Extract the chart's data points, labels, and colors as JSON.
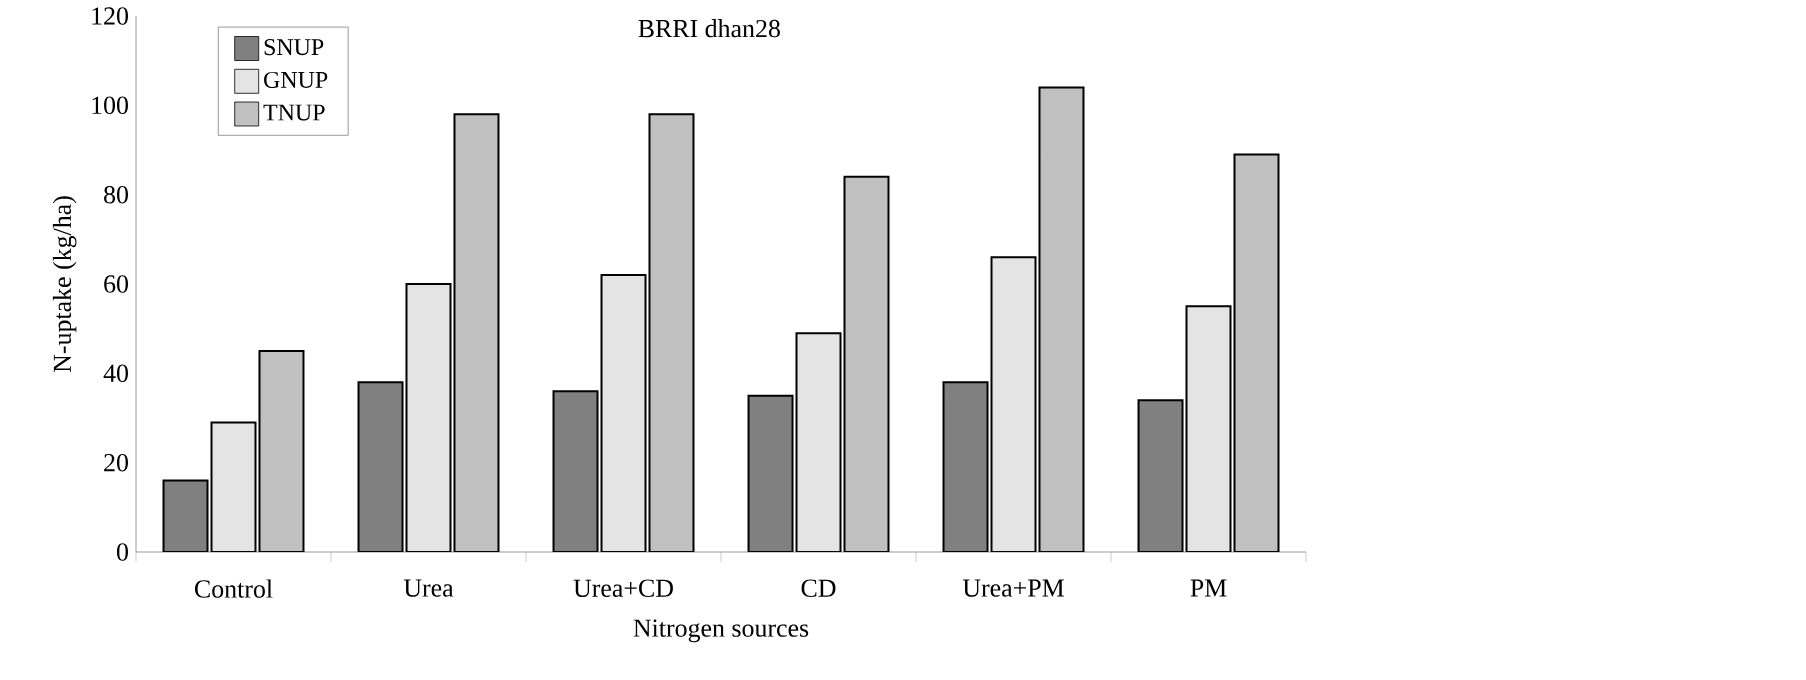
{
  "chart_data": {
    "type": "bar",
    "title": "BRRI dhan28",
    "xlabel": "Nitrogen sources",
    "ylabel": "N-uptake (kg/ha)",
    "categories": [
      "Control",
      "Urea",
      "Urea+CD",
      "CD",
      "Urea+PM",
      "PM"
    ],
    "series": [
      {
        "name": "SNUP",
        "color": "#808080",
        "values": [
          16,
          38,
          36,
          35,
          38,
          34
        ]
      },
      {
        "name": "GNUP",
        "color": "#e4e4e4",
        "values": [
          29,
          60,
          62,
          49,
          66,
          55
        ]
      },
      {
        "name": "TNUP",
        "color": "#c0c0c0",
        "values": [
          45,
          98,
          98,
          84,
          104,
          89
        ]
      }
    ],
    "ylim": [
      0,
      120
    ],
    "yticks": [
      0,
      20,
      40,
      60,
      80,
      100,
      120
    ],
    "legend": "top left"
  }
}
